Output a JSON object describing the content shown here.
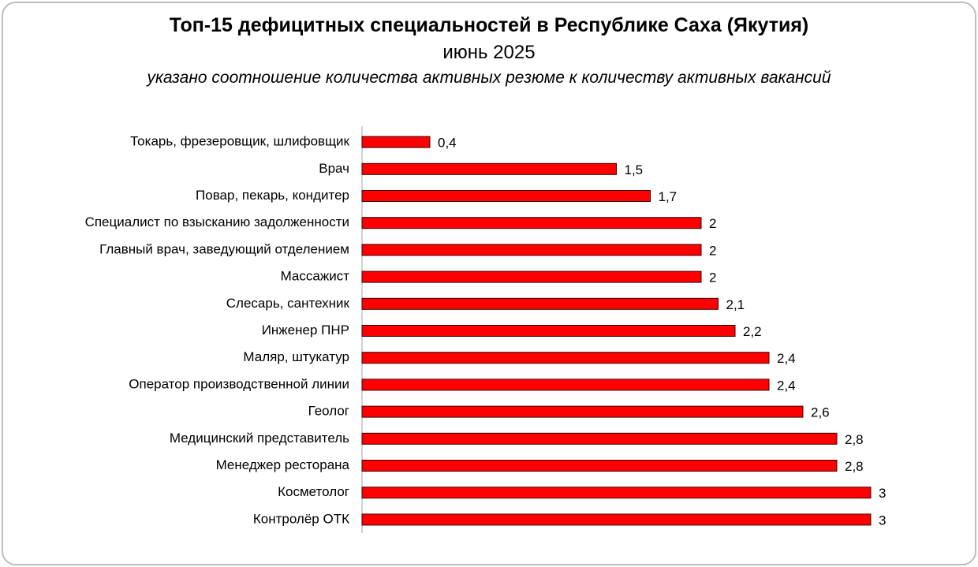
{
  "chart_data": {
    "type": "bar",
    "orientation": "horizontal",
    "title": "Топ-15 дефицитных специальностей в Республике Саха (Якутия)",
    "subtitle": "июнь 2025",
    "note": "указано соотношение количества активных резюме к количеству активных вакансий",
    "categories": [
      "Токарь, фрезеровщик, шлифовщик",
      "Врач",
      "Повар, пекарь, кондитер",
      "Специалист по взысканию задолженности",
      "Главный врач, заведующий отделением",
      "Массажист",
      "Слесарь, сантехник",
      "Инженер ПНР",
      "Маляр, штукатур",
      "Оператор производственной линии",
      "Геолог",
      "Медицинский представитель",
      "Менеджер ресторана",
      "Косметолог",
      "Контролёр ОТК"
    ],
    "values": [
      0.4,
      1.5,
      1.7,
      2,
      2,
      2,
      2.1,
      2.2,
      2.4,
      2.4,
      2.6,
      2.8,
      2.8,
      3,
      3
    ],
    "value_labels": [
      "0,4",
      "1,5",
      "1,7",
      "2",
      "2",
      "2",
      "2,1",
      "2,2",
      "2,4",
      "2,4",
      "2,6",
      "2,8",
      "2,8",
      "3",
      "3"
    ],
    "color": "#ff0000"
  }
}
